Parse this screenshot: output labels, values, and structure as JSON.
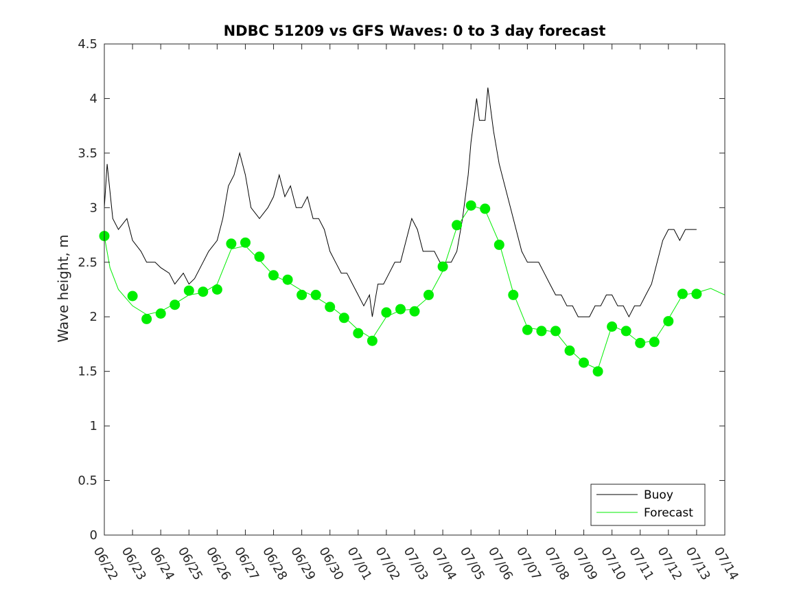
{
  "chart_data": {
    "type": "line",
    "title": "NDBC 51209 vs GFS Waves: 0 to 3 day forecast",
    "xlabel": "",
    "ylabel": "Wave height, m",
    "ylim": [
      0,
      4.5
    ],
    "yticks": [
      "0",
      "0.5",
      "1",
      "1.5",
      "2",
      "2.5",
      "3",
      "3.5",
      "4",
      "4.5"
    ],
    "xlim": [
      "06/22",
      "07/14"
    ],
    "xticks": [
      "06/22",
      "06/23",
      "06/24",
      "06/25",
      "06/26",
      "06/27",
      "06/28",
      "06/29",
      "06/30",
      "07/01",
      "07/02",
      "07/03",
      "07/04",
      "07/05",
      "07/06",
      "07/07",
      "07/08",
      "07/09",
      "07/10",
      "07/11",
      "07/12",
      "07/13",
      "07/14"
    ],
    "grid": false,
    "legend_position": "bottom-right",
    "series": [
      {
        "name": "Buoy",
        "color": "#000000",
        "style": "line",
        "points": [
          [
            0.0,
            3.0
          ],
          [
            0.1,
            3.4
          ],
          [
            0.3,
            2.9
          ],
          [
            0.5,
            2.8
          ],
          [
            0.8,
            2.9
          ],
          [
            1.0,
            2.7
          ],
          [
            1.3,
            2.6
          ],
          [
            1.5,
            2.5
          ],
          [
            1.8,
            2.5
          ],
          [
            2.0,
            2.45
          ],
          [
            2.3,
            2.4
          ],
          [
            2.5,
            2.3
          ],
          [
            2.8,
            2.4
          ],
          [
            3.0,
            2.3
          ],
          [
            3.2,
            2.35
          ],
          [
            3.5,
            2.5
          ],
          [
            3.7,
            2.6
          ],
          [
            4.0,
            2.7
          ],
          [
            4.2,
            2.9
          ],
          [
            4.4,
            3.2
          ],
          [
            4.6,
            3.3
          ],
          [
            4.8,
            3.5
          ],
          [
            5.0,
            3.3
          ],
          [
            5.2,
            3.0
          ],
          [
            5.5,
            2.9
          ],
          [
            5.8,
            3.0
          ],
          [
            6.0,
            3.1
          ],
          [
            6.2,
            3.3
          ],
          [
            6.4,
            3.1
          ],
          [
            6.6,
            3.2
          ],
          [
            6.8,
            3.0
          ],
          [
            7.0,
            3.0
          ],
          [
            7.2,
            3.1
          ],
          [
            7.4,
            2.9
          ],
          [
            7.6,
            2.9
          ],
          [
            7.8,
            2.8
          ],
          [
            8.0,
            2.6
          ],
          [
            8.2,
            2.5
          ],
          [
            8.4,
            2.4
          ],
          [
            8.6,
            2.4
          ],
          [
            8.8,
            2.3
          ],
          [
            9.0,
            2.2
          ],
          [
            9.2,
            2.1
          ],
          [
            9.4,
            2.2
          ],
          [
            9.5,
            2.0
          ],
          [
            9.7,
            2.3
          ],
          [
            9.9,
            2.3
          ],
          [
            10.1,
            2.4
          ],
          [
            10.3,
            2.5
          ],
          [
            10.5,
            2.5
          ],
          [
            10.7,
            2.7
          ],
          [
            10.9,
            2.9
          ],
          [
            11.1,
            2.8
          ],
          [
            11.3,
            2.6
          ],
          [
            11.5,
            2.6
          ],
          [
            11.7,
            2.6
          ],
          [
            11.9,
            2.5
          ],
          [
            12.1,
            2.5
          ],
          [
            12.3,
            2.5
          ],
          [
            12.5,
            2.6
          ],
          [
            12.7,
            2.9
          ],
          [
            12.9,
            3.3
          ],
          [
            13.0,
            3.6
          ],
          [
            13.1,
            3.8
          ],
          [
            13.2,
            4.0
          ],
          [
            13.3,
            3.8
          ],
          [
            13.5,
            3.8
          ],
          [
            13.6,
            4.1
          ],
          [
            13.8,
            3.7
          ],
          [
            14.0,
            3.4
          ],
          [
            14.2,
            3.2
          ],
          [
            14.4,
            3.0
          ],
          [
            14.6,
            2.8
          ],
          [
            14.8,
            2.6
          ],
          [
            15.0,
            2.5
          ],
          [
            15.2,
            2.5
          ],
          [
            15.4,
            2.5
          ],
          [
            15.6,
            2.4
          ],
          [
            15.8,
            2.3
          ],
          [
            16.0,
            2.2
          ],
          [
            16.2,
            2.2
          ],
          [
            16.4,
            2.1
          ],
          [
            16.6,
            2.1
          ],
          [
            16.8,
            2.0
          ],
          [
            17.0,
            2.0
          ],
          [
            17.2,
            2.0
          ],
          [
            17.4,
            2.1
          ],
          [
            17.6,
            2.1
          ],
          [
            17.8,
            2.2
          ],
          [
            18.0,
            2.2
          ],
          [
            18.2,
            2.1
          ],
          [
            18.4,
            2.1
          ],
          [
            18.6,
            2.0
          ],
          [
            18.8,
            2.1
          ],
          [
            19.0,
            2.1
          ],
          [
            19.2,
            2.2
          ],
          [
            19.4,
            2.3
          ],
          [
            19.6,
            2.5
          ],
          [
            19.8,
            2.7
          ],
          [
            20.0,
            2.8
          ],
          [
            20.2,
            2.8
          ],
          [
            20.4,
            2.7
          ],
          [
            20.6,
            2.8
          ],
          [
            20.8,
            2.8
          ],
          [
            21.0,
            2.8
          ]
        ]
      },
      {
        "name": "Forecast",
        "color": "#00ee00",
        "style": "line",
        "points": [
          [
            0.0,
            2.74
          ],
          [
            0.2,
            2.45
          ],
          [
            0.5,
            2.25
          ],
          [
            1.0,
            2.1
          ],
          [
            1.5,
            2.02
          ],
          [
            2.0,
            2.05
          ],
          [
            2.5,
            2.12
          ],
          [
            3.0,
            2.2
          ],
          [
            3.5,
            2.22
          ],
          [
            4.0,
            2.3
          ],
          [
            4.5,
            2.62
          ],
          [
            5.0,
            2.65
          ],
          [
            5.5,
            2.52
          ],
          [
            6.0,
            2.38
          ],
          [
            6.5,
            2.32
          ],
          [
            7.0,
            2.24
          ],
          [
            7.5,
            2.18
          ],
          [
            8.0,
            2.1
          ],
          [
            8.5,
            2.0
          ],
          [
            9.0,
            1.88
          ],
          [
            9.5,
            1.8
          ],
          [
            10.0,
            2.0
          ],
          [
            10.5,
            2.06
          ],
          [
            11.0,
            2.07
          ],
          [
            11.5,
            2.18
          ],
          [
            12.0,
            2.42
          ],
          [
            12.5,
            2.82
          ],
          [
            13.0,
            3.02
          ],
          [
            13.5,
            2.98
          ],
          [
            14.0,
            2.68
          ],
          [
            14.5,
            2.22
          ],
          [
            15.0,
            1.9
          ],
          [
            15.5,
            1.88
          ],
          [
            16.0,
            1.86
          ],
          [
            16.5,
            1.7
          ],
          [
            17.0,
            1.58
          ],
          [
            17.5,
            1.52
          ],
          [
            18.0,
            1.92
          ],
          [
            18.5,
            1.86
          ],
          [
            19.0,
            1.76
          ],
          [
            19.5,
            1.78
          ],
          [
            20.0,
            1.98
          ],
          [
            20.5,
            2.2
          ],
          [
            21.0,
            2.22
          ],
          [
            21.5,
            2.26
          ],
          [
            22.0,
            2.2
          ]
        ]
      },
      {
        "name": "Forecast",
        "color": "#00ee00",
        "style": "markers",
        "points": [
          [
            0.0,
            2.74
          ],
          [
            1.0,
            2.19
          ],
          [
            1.5,
            1.98
          ],
          [
            2.0,
            2.03
          ],
          [
            2.5,
            2.11
          ],
          [
            3.0,
            2.24
          ],
          [
            3.5,
            2.23
          ],
          [
            4.0,
            2.25
          ],
          [
            4.5,
            2.67
          ],
          [
            5.0,
            2.68
          ],
          [
            5.5,
            2.55
          ],
          [
            6.0,
            2.38
          ],
          [
            6.5,
            2.34
          ],
          [
            7.0,
            2.2
          ],
          [
            7.5,
            2.2
          ],
          [
            8.0,
            2.09
          ],
          [
            8.5,
            1.99
          ],
          [
            9.0,
            1.85
          ],
          [
            9.5,
            1.78
          ],
          [
            10.0,
            2.04
          ],
          [
            10.5,
            2.07
          ],
          [
            11.0,
            2.05
          ],
          [
            11.5,
            2.2
          ],
          [
            12.0,
            2.46
          ],
          [
            12.5,
            2.84
          ],
          [
            13.0,
            3.02
          ],
          [
            13.5,
            2.99
          ],
          [
            14.0,
            2.66
          ],
          [
            14.5,
            2.2
          ],
          [
            15.0,
            1.88
          ],
          [
            15.5,
            1.87
          ],
          [
            16.0,
            1.87
          ],
          [
            16.5,
            1.69
          ],
          [
            17.0,
            1.58
          ],
          [
            17.5,
            1.5
          ],
          [
            18.0,
            1.91
          ],
          [
            18.5,
            1.87
          ],
          [
            19.0,
            1.76
          ],
          [
            19.5,
            1.77
          ],
          [
            20.0,
            1.96
          ],
          [
            20.5,
            2.21
          ],
          [
            21.0,
            2.21
          ]
        ]
      }
    ]
  }
}
